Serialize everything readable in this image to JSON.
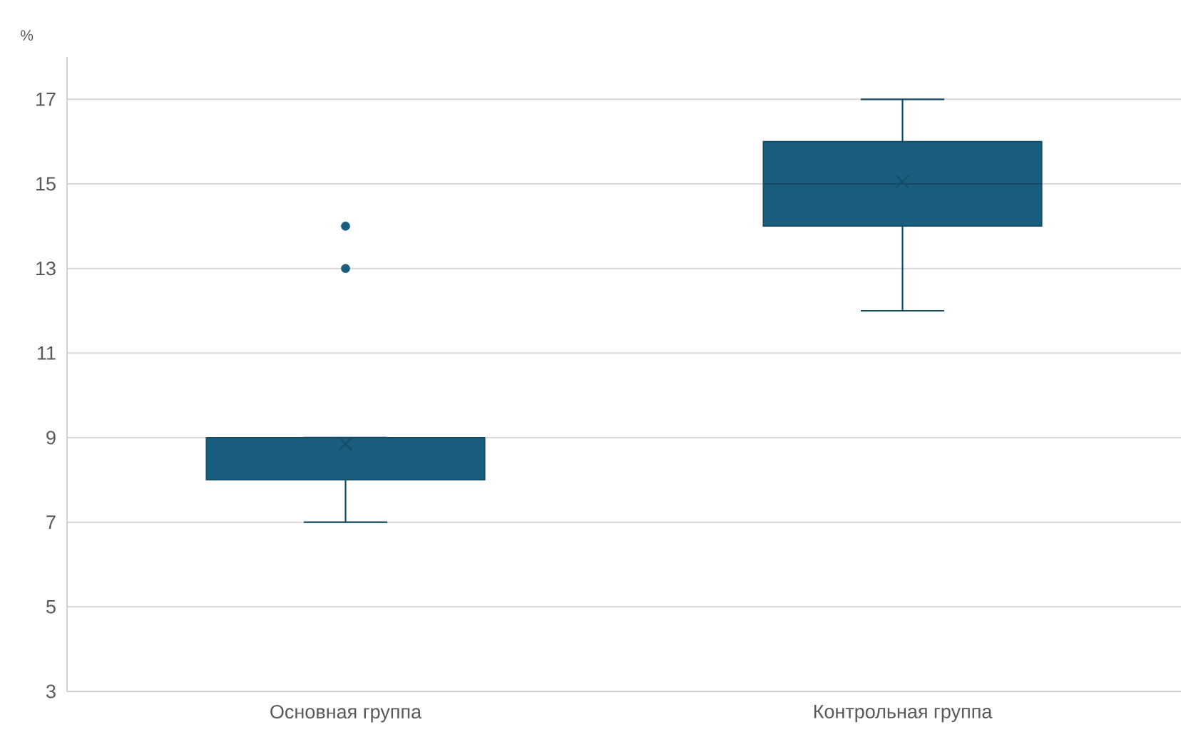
{
  "chart_data": {
    "type": "box",
    "ylabel": "%",
    "categories": [
      "Основная группа",
      "Контрольная группа"
    ],
    "boxes": [
      {
        "low": 7,
        "q1": 8,
        "median": 9,
        "q3": 9,
        "high": 9,
        "mean": 8.85,
        "outliers": [
          13,
          14
        ]
      },
      {
        "low": 12,
        "q1": 14,
        "median": 15,
        "q3": 16,
        "high": 17,
        "mean": 15.05
      }
    ],
    "color": "#195e7e",
    "ylim": [
      3,
      18
    ],
    "yticks": [
      3,
      5,
      7,
      9,
      11,
      13,
      15,
      17
    ],
    "grid": "y"
  }
}
